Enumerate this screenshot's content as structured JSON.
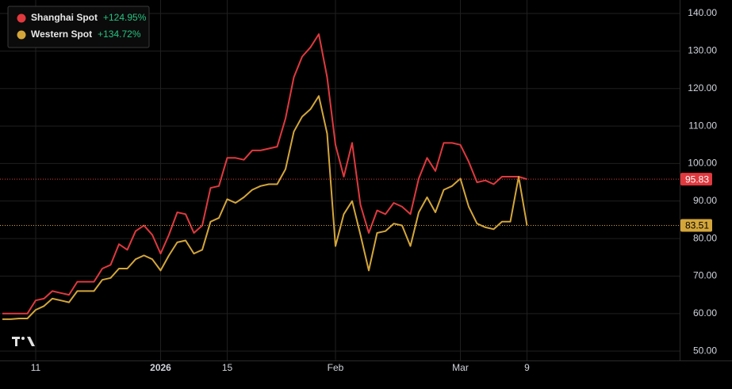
{
  "chart_data": {
    "type": "line",
    "categories": [
      null,
      null,
      null,
      null,
      "11",
      null,
      null,
      null,
      null,
      null,
      null,
      null,
      null,
      null,
      null,
      null,
      null,
      null,
      null,
      "2026",
      null,
      null,
      null,
      null,
      null,
      null,
      null,
      "15",
      null,
      null,
      null,
      null,
      null,
      null,
      null,
      null,
      null,
      null,
      null,
      null,
      "Feb",
      null,
      null,
      null,
      null,
      null,
      null,
      null,
      null,
      null,
      null,
      null,
      null,
      null,
      null,
      "Mar",
      null,
      null,
      null,
      null,
      null,
      null,
      null,
      "9"
    ],
    "series": [
      {
        "name": "Shanghai Spot",
        "change": "+124.95%",
        "color": "#e0393e",
        "values": [
          60,
          60,
          60,
          60,
          63.5,
          64,
          66,
          65.5,
          65,
          68.5,
          68.5,
          68.5,
          72,
          73,
          78.5,
          77,
          82,
          83.5,
          81,
          76,
          81,
          87,
          86.5,
          81.5,
          83.5,
          93.5,
          94,
          101.5,
          101.5,
          101,
          103.5,
          103.5,
          104,
          104.5,
          112,
          123,
          128.5,
          131,
          134.5,
          123,
          105,
          96.5,
          105.5,
          89,
          81.5,
          87.5,
          86.5,
          89.5,
          88.5,
          86.5,
          96,
          101.5,
          98,
          105.5,
          105.5,
          105,
          100.5,
          95,
          95.5,
          94.5,
          96.5,
          96.5,
          96.5,
          95.83
        ]
      },
      {
        "name": "Western Spot",
        "change": "+134.72%",
        "color": "#d4a63a",
        "values": [
          58.5,
          58.5,
          58.7,
          58.7,
          61,
          62,
          64,
          63.5,
          63,
          66,
          66,
          66,
          69,
          69.5,
          72,
          72,
          74.5,
          75.5,
          74.5,
          71.5,
          75.5,
          79,
          79.5,
          76,
          77,
          84.5,
          85.5,
          90.5,
          89.5,
          91,
          93,
          94,
          94.5,
          94.5,
          98.5,
          108.5,
          112.5,
          114.5,
          118,
          108,
          78,
          86.5,
          90,
          81,
          71.5,
          81.5,
          82,
          84,
          83.5,
          78,
          87,
          91,
          87,
          93,
          94,
          96,
          88.5,
          84,
          83,
          82.5,
          84.5,
          84.5,
          96.5,
          83.51
        ]
      }
    ],
    "ylim": [
      47.5,
      143.6
    ],
    "yticks": [
      {
        "value": 50,
        "label": "50.00"
      },
      {
        "value": 60,
        "label": "60.00"
      },
      {
        "value": 70,
        "label": "70.00"
      },
      {
        "value": 80,
        "label": "80.00"
      },
      {
        "value": 90,
        "label": "90.00"
      },
      {
        "value": 100,
        "label": "100.00"
      },
      {
        "value": 110,
        "label": "110.00"
      },
      {
        "value": 120,
        "label": "120.00"
      },
      {
        "value": 130,
        "label": "130.00"
      },
      {
        "value": 140,
        "label": "140.00"
      }
    ],
    "grid": true,
    "legend": "top-left"
  }
}
